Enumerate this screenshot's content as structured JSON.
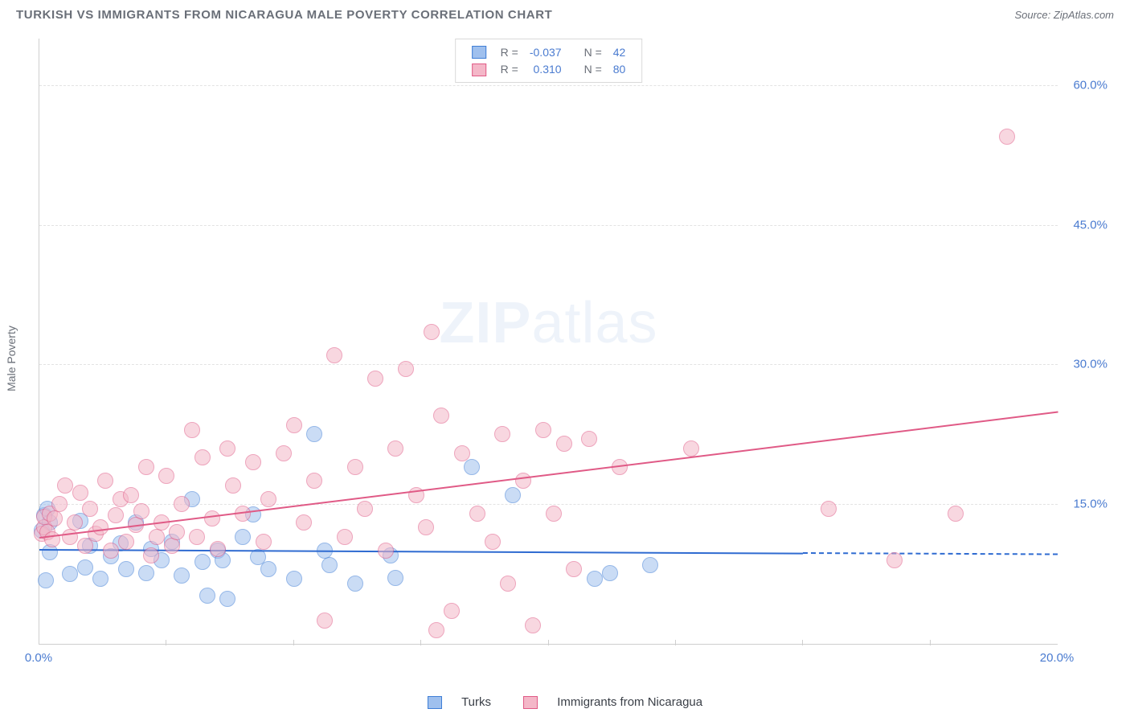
{
  "title": "TURKISH VS IMMIGRANTS FROM NICARAGUA MALE POVERTY CORRELATION CHART",
  "source": "Source: ZipAtlas.com",
  "watermark": {
    "part1": "ZIP",
    "part2": "atlas"
  },
  "y_axis_label": "Male Poverty",
  "chart": {
    "type": "scatter",
    "background_color": "#ffffff",
    "grid_color": "#e3e3e3",
    "axis_color": "#cfcfcf",
    "tick_label_color": "#4a7bd0",
    "tick_label_fontsize": 15,
    "xlim": [
      0,
      20
    ],
    "ylim": [
      0,
      65
    ],
    "x_ticks_minor": [
      2.5,
      5,
      7.5,
      10,
      12.5,
      15,
      17.5
    ],
    "x_tick_labels": [
      {
        "value": 0,
        "label": "0.0%"
      },
      {
        "value": 20,
        "label": "20.0%"
      }
    ],
    "y_ticks": [
      {
        "value": 15,
        "label": "15.0%"
      },
      {
        "value": 30,
        "label": "30.0%"
      },
      {
        "value": 45,
        "label": "45.0%"
      },
      {
        "value": 60,
        "label": "60.0%"
      }
    ],
    "marker_radius": 10,
    "marker_opacity": 0.55,
    "series": [
      {
        "name": "Turks",
        "fill_color": "#9fc0ee",
        "border_color": "#3f7ed6",
        "r_value": "-0.037",
        "n_value": "42",
        "trend": {
          "x1": 0,
          "y1": 10.2,
          "x2": 15,
          "y2": 9.8,
          "extrapolate_x2": 20,
          "color": "#2f6bd1",
          "width": 2,
          "dash_extrapolate": true
        },
        "points": [
          [
            0.05,
            12.2
          ],
          [
            0.1,
            13.8
          ],
          [
            0.12,
            6.8
          ],
          [
            0.15,
            14.5
          ],
          [
            0.2,
            13.0
          ],
          [
            0.2,
            9.8
          ],
          [
            0.6,
            7.5
          ],
          [
            0.8,
            13.2
          ],
          [
            0.9,
            8.2
          ],
          [
            1.0,
            10.5
          ],
          [
            1.2,
            7.0
          ],
          [
            1.4,
            9.4
          ],
          [
            1.6,
            10.8
          ],
          [
            1.7,
            8.0
          ],
          [
            1.9,
            13.0
          ],
          [
            2.1,
            7.6
          ],
          [
            2.2,
            10.2
          ],
          [
            2.4,
            9.0
          ],
          [
            2.6,
            11.0
          ],
          [
            2.8,
            7.3
          ],
          [
            3.0,
            15.5
          ],
          [
            3.2,
            8.8
          ],
          [
            3.3,
            5.2
          ],
          [
            3.5,
            10.0
          ],
          [
            3.6,
            9.0
          ],
          [
            3.7,
            4.8
          ],
          [
            4.0,
            11.5
          ],
          [
            4.2,
            13.9
          ],
          [
            4.3,
            9.3
          ],
          [
            4.5,
            8.0
          ],
          [
            5.0,
            7.0
          ],
          [
            5.4,
            22.5
          ],
          [
            5.6,
            10.0
          ],
          [
            5.7,
            8.5
          ],
          [
            6.2,
            6.5
          ],
          [
            6.9,
            9.5
          ],
          [
            7.0,
            7.1
          ],
          [
            8.5,
            19.0
          ],
          [
            9.3,
            16.0
          ],
          [
            10.9,
            7.0
          ],
          [
            11.2,
            7.6
          ],
          [
            12.0,
            8.5
          ]
        ]
      },
      {
        "name": "Immigrants from Nicaragua",
        "fill_color": "#f4b7c8",
        "border_color": "#e05a86",
        "r_value": "0.310",
        "n_value": "80",
        "trend": {
          "x1": 0,
          "y1": 11.5,
          "x2": 20,
          "y2": 25.0,
          "color": "#e05a86",
          "width": 2
        },
        "points": [
          [
            0.05,
            11.8
          ],
          [
            0.1,
            12.5
          ],
          [
            0.1,
            13.6
          ],
          [
            0.15,
            12.0
          ],
          [
            0.2,
            14.0
          ],
          [
            0.25,
            11.2
          ],
          [
            0.3,
            13.5
          ],
          [
            0.4,
            15.0
          ],
          [
            0.5,
            17.0
          ],
          [
            0.6,
            11.5
          ],
          [
            0.7,
            13.0
          ],
          [
            0.8,
            16.2
          ],
          [
            0.9,
            10.5
          ],
          [
            1.0,
            14.5
          ],
          [
            1.1,
            11.8
          ],
          [
            1.2,
            12.5
          ],
          [
            1.3,
            17.5
          ],
          [
            1.4,
            10.0
          ],
          [
            1.5,
            13.8
          ],
          [
            1.6,
            15.5
          ],
          [
            1.7,
            11.0
          ],
          [
            1.8,
            16.0
          ],
          [
            1.9,
            12.8
          ],
          [
            2.0,
            14.2
          ],
          [
            2.1,
            19.0
          ],
          [
            2.2,
            9.5
          ],
          [
            2.3,
            11.5
          ],
          [
            2.4,
            13.0
          ],
          [
            2.5,
            18.0
          ],
          [
            2.6,
            10.5
          ],
          [
            2.7,
            12.0
          ],
          [
            2.8,
            15.0
          ],
          [
            3.0,
            23.0
          ],
          [
            3.1,
            11.5
          ],
          [
            3.2,
            20.0
          ],
          [
            3.4,
            13.5
          ],
          [
            3.5,
            10.2
          ],
          [
            3.7,
            21.0
          ],
          [
            3.8,
            17.0
          ],
          [
            4.0,
            14.0
          ],
          [
            4.2,
            19.5
          ],
          [
            4.4,
            11.0
          ],
          [
            4.5,
            15.5
          ],
          [
            4.8,
            20.5
          ],
          [
            5.0,
            23.5
          ],
          [
            5.2,
            13.0
          ],
          [
            5.4,
            17.5
          ],
          [
            5.6,
            2.5
          ],
          [
            5.8,
            31.0
          ],
          [
            6.0,
            11.5
          ],
          [
            6.2,
            19.0
          ],
          [
            6.4,
            14.5
          ],
          [
            6.6,
            28.5
          ],
          [
            6.8,
            10.0
          ],
          [
            7.0,
            21.0
          ],
          [
            7.2,
            29.5
          ],
          [
            7.4,
            16.0
          ],
          [
            7.6,
            12.5
          ],
          [
            7.7,
            33.5
          ],
          [
            7.8,
            1.5
          ],
          [
            7.9,
            24.5
          ],
          [
            8.1,
            3.5
          ],
          [
            8.3,
            20.5
          ],
          [
            8.6,
            14.0
          ],
          [
            8.9,
            11.0
          ],
          [
            9.1,
            22.5
          ],
          [
            9.2,
            6.5
          ],
          [
            9.5,
            17.5
          ],
          [
            9.7,
            2.0
          ],
          [
            9.9,
            23.0
          ],
          [
            10.1,
            14.0
          ],
          [
            10.3,
            21.5
          ],
          [
            10.5,
            8.0
          ],
          [
            10.8,
            22.0
          ],
          [
            11.4,
            19.0
          ],
          [
            12.8,
            21.0
          ],
          [
            15.5,
            14.5
          ],
          [
            16.8,
            9.0
          ],
          [
            18.0,
            14.0
          ],
          [
            19.0,
            54.5
          ]
        ]
      }
    ],
    "legend_top": {
      "r_label": "R =",
      "n_label": "N =",
      "value_color": "#4a7bd0",
      "label_color": "#6a6f78"
    }
  }
}
